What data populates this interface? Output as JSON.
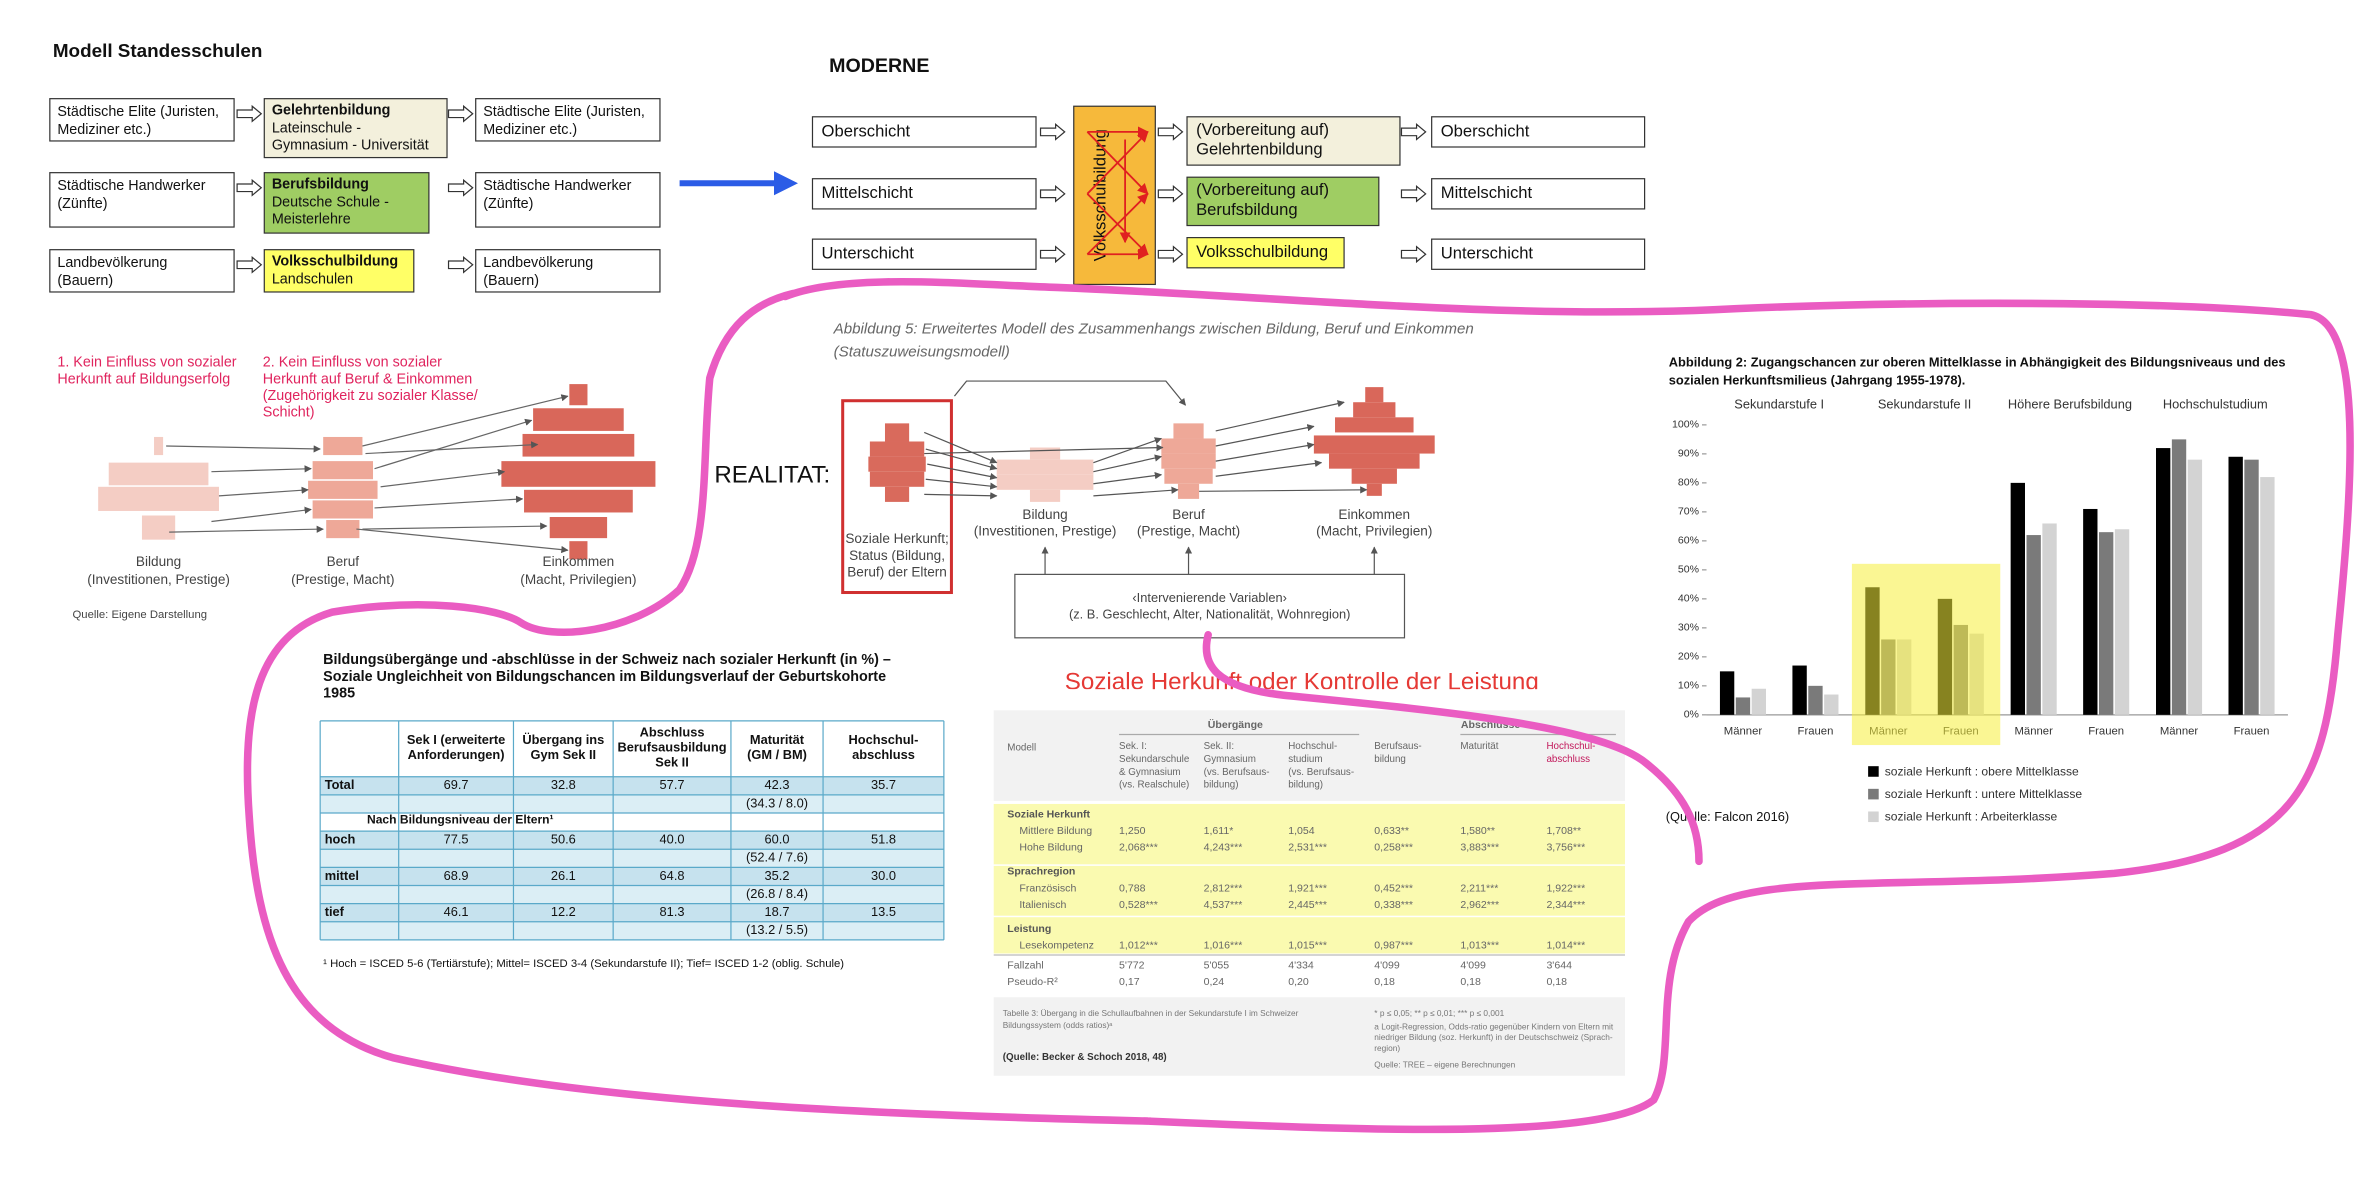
{
  "standes": {
    "title": "Modell Standesschulen",
    "rows": [
      {
        "left": [
          "Städtische Elite (Juristen,",
          "Mediziner etc.)"
        ],
        "school": "Gelehrtenbildung",
        "school_lines": [
          "Lateinschule -",
          "Gymnasium - Universität"
        ],
        "right": [
          "Städtische Elite (Juristen,",
          "Mediziner etc.)"
        ]
      },
      {
        "left": [
          "Städtische Handwerker",
          "(Zünfte)"
        ],
        "school": "Berufsbildung",
        "school_lines": [
          "Deutsche Schule -",
          "Meisterlehre"
        ],
        "right": [
          "Städtische Handwerker",
          "(Zünfte)"
        ]
      },
      {
        "left": [
          "Landbevölkerung",
          "(Bauern)"
        ],
        "school": "Volksschulbildung",
        "school_lines": [
          "Landschulen"
        ],
        "right": [
          "Landbevölkerung",
          "(Bauern)"
        ]
      }
    ]
  },
  "moderne": {
    "title": "MODERNE",
    "classes_left": [
      "Oberschicht",
      "Mittelschicht",
      "Unterschicht"
    ],
    "volksschule": "Volksschulbildung",
    "education": [
      [
        "(Vorbereitung auf)",
        "Gelehrtenbildung"
      ],
      [
        "(Vorbereitung auf)",
        "Berufsbildung"
      ],
      [
        "Volksschulbildung"
      ]
    ],
    "classes_right": [
      "Oberschicht",
      "Mittelschicht",
      "Unterschicht"
    ]
  },
  "realitaet": {
    "label": "REALITAT:",
    "notes": [
      [
        "1. Kein Einfluss von sozialer",
        "Herkunft auf Bildungserfolg"
      ],
      [
        "2. Kein Einfluss von sozialer",
        "Herkunft auf Beruf & Einkommen",
        "(Zugehörigkeit zu sozialer Klasse/",
        "Schicht)"
      ]
    ],
    "stages": [
      [
        "Bildung",
        "(Investitionen, Prestige)"
      ],
      [
        "Beruf",
        "(Prestige, Macht)"
      ],
      [
        "Einkommen",
        "(Macht, Privilegien)"
      ]
    ],
    "source": "Quelle: Eigene Darstellung"
  },
  "abbildung5": {
    "caption": [
      "Abbildung 5: Erweitertes Modell des Zusammenhangs zwischen Bildung, Beruf und Einkommen",
      "(Statuszuweisungsmodell)"
    ],
    "origin": [
      "Soziale Herkunft;",
      "Status (Bildung,",
      "Beruf) der Eltern"
    ],
    "stages": [
      [
        "Bildung",
        "(Investitionen, Prestige)"
      ],
      [
        "Beruf",
        "(Prestige, Macht)"
      ],
      [
        "Einkommen",
        "(Macht, Privilegien)"
      ]
    ],
    "intervening": [
      "‹Intervenierende Variablen›",
      "(z. B. Geschlecht, Alter, Nationalität, Wohnregion)"
    ]
  },
  "table": {
    "title": [
      "Bildungsübergänge und -abschlüsse in der Schweiz nach sozialer Herkunft (in %) –",
      "Soziale Ungleichheit von Bildungschancen im Bildungsverlauf der Geburtskohorte",
      "1985"
    ],
    "columns": [
      [
        "Sek I (erweiterte",
        "Anforderungen)"
      ],
      [
        "Übergang ins",
        "Gym Sek II"
      ],
      [
        "Abschluss",
        "Berufsausbildung",
        "Sek II"
      ],
      [
        "Maturität",
        "(GM / BM)"
      ],
      [
        "Hochschul-",
        "abschluss"
      ]
    ],
    "rows": [
      {
        "label": "Total",
        "values": [
          "69.7",
          "32.8",
          "57.7",
          "42.3",
          "35.7"
        ],
        "sub": "(34.3 / 8.0)"
      },
      {
        "label": "hoch",
        "values": [
          "77.5",
          "50.6",
          "40.0",
          "60.0",
          "51.8"
        ],
        "sub": "(52.4 / 7.6)"
      },
      {
        "label": "mittel",
        "values": [
          "68.9",
          "26.1",
          "64.8",
          "35.2",
          "30.0"
        ],
        "sub": "(26.8 / 8.4)"
      },
      {
        "label": "tief",
        "values": [
          "46.1",
          "12.2",
          "81.3",
          "18.7",
          "13.5"
        ],
        "sub": "(13.2 / 5.5)"
      }
    ],
    "section": "Nach Bildungsniveau der Eltern¹",
    "footnote": "¹ Hoch = ISCED 5-6 (Tertiärstufe); Mittel= ISCED 3-4 (Sekundarstufe II); Tief= ISCED 1-2 (oblig. Schule)"
  },
  "becker": {
    "title": "Soziale Herkunft oder Kontrolle der Leistung",
    "groups": [
      "Übergänge",
      "Abschlüsse"
    ],
    "columns": [
      [
        "Modell"
      ],
      [
        "Sek. I:",
        "Sekundarschule",
        "& Gymnasium",
        "(vs. Realschule)"
      ],
      [
        "Sek. II:",
        "Gymnasium",
        "(vs. Berufsaus-",
        "bildung)"
      ],
      [
        "Hochschul-",
        "studium",
        "(vs. Berufsaus-",
        "bildung)"
      ],
      [
        "Berufsaus-",
        "bildung"
      ],
      [
        "Maturität"
      ],
      [
        "Hochschul-",
        "abschluss"
      ]
    ],
    "sections": [
      {
        "name": "Soziale Herkunft",
        "rows": [
          {
            "label": "Mittlere Bildung",
            "values": [
              "1,250",
              "1,611*",
              "1,054",
              "0,633**",
              "1,580**",
              "1,708**"
            ]
          },
          {
            "label": "Hohe Bildung",
            "values": [
              "2,068***",
              "4,243***",
              "2,531***",
              "0,258***",
              "3,883***",
              "3,756***"
            ]
          }
        ]
      },
      {
        "name": "Sprachregion",
        "rows": [
          {
            "label": "Französisch",
            "values": [
              "0,788",
              "2,812***",
              "1,921***",
              "0,452***",
              "2,211***",
              "1,922***"
            ]
          },
          {
            "label": "Italienisch",
            "values": [
              "0,528***",
              "4,537***",
              "2,445***",
              "0,338***",
              "2,962***",
              "2,344***"
            ]
          }
        ]
      },
      {
        "name": "Leistung",
        "rows": [
          {
            "label": "Lesekompetenz",
            "values": [
              "1,012***",
              "1,016***",
              "1,015***",
              "0,987***",
              "1,013***",
              "1,014***"
            ]
          }
        ]
      }
    ],
    "summary": [
      {
        "label": "Fallzahl",
        "values": [
          "5'772",
          "5'055",
          "4'334",
          "4'099",
          "4'099",
          "3'644"
        ]
      },
      {
        "label": "Pseudo-R²",
        "values": [
          "0,17",
          "0,24",
          "0,20",
          "0,18",
          "0,18",
          "0,18"
        ]
      }
    ],
    "table_note": [
      "Tabelle 3: Übergang in die Schullaufbahnen in der Sekundarstufe I im Schweizer",
      "Bildungssystem (odds ratios)ᵃ"
    ],
    "significance": "* p ≤ 0,05; ** p ≤ 0,01; *** p ≤ 0,001",
    "footnote_a": [
      "a   Logit-Regression, Odds-ratio gegenüber Kindern von Eltern mit",
      "niedriger Bildung (soz. Herkunft) in der Deutschschweiz (Sprach-",
      "region)"
    ],
    "quelle": "Quelle: TREE – eigene Berechnungen",
    "source": "(Quelle: Becker & Schoch 2018, 48)"
  },
  "chart_data": {
    "type": "bar",
    "title": [
      "Abbildung 2: Zugangschancen zur oberen Mittelklasse in Abhängigkeit des Bildungsniveaus und des",
      "sozialen Herkunftsmilieus (Jahrgang 1955-1978)."
    ],
    "groups": [
      "Sekundarstufe I",
      "Sekundarstufe II",
      "Höhere Berufsbildung",
      "Hochschulstudium"
    ],
    "categories": [
      "Männer",
      "Frauen",
      "Männer",
      "Frauen",
      "Männer",
      "Frauen",
      "Männer",
      "Frauen"
    ],
    "series": [
      {
        "name": "soziale Herkunft : obere Mittelklasse",
        "color": "#000000",
        "values": [
          15,
          17,
          44,
          40,
          80,
          71,
          92,
          89
        ]
      },
      {
        "name": "soziale Herkunft : untere Mittelklasse",
        "color": "#7a7a7a",
        "values": [
          6,
          10,
          26,
          31,
          62,
          63,
          95,
          88
        ]
      },
      {
        "name": "soziale Herkunft : Arbeiterklasse",
        "color": "#d3d3d3",
        "values": [
          9,
          7,
          26,
          28,
          66,
          64,
          88,
          82
        ]
      }
    ],
    "ylim": [
      0,
      100
    ],
    "yticks": [
      {
        "value": 0,
        "label": "0%"
      },
      {
        "value": 10,
        "label": "10%"
      },
      {
        "value": 20,
        "label": "20%"
      },
      {
        "value": 30,
        "label": "30%"
      },
      {
        "value": 40,
        "label": "40%"
      },
      {
        "value": 50,
        "label": "50%"
      },
      {
        "value": 60,
        "label": "60%"
      },
      {
        "value": 70,
        "label": "70%"
      },
      {
        "value": 80,
        "label": "80%"
      },
      {
        "value": 90,
        "label": "90%"
      },
      {
        "value": 100,
        "label": "100%"
      }
    ],
    "highlight_group": 1,
    "highlight_color": "#f5ee3a",
    "source": "(Quelle: Falcon 2016)"
  }
}
